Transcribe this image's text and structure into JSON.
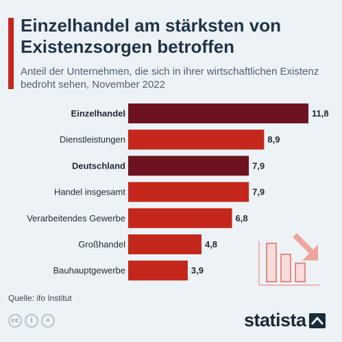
{
  "header": {
    "title": "Einzelhandel am stärksten von Existenzsorgen betroffen",
    "subtitle": "Anteil der Unternehmen, die sich in ihrer wirtschaftlichen Existenz bedroht sehen, November 2022"
  },
  "footer": {
    "source": "Quelle: ifo Institut",
    "brand": "statista",
    "license_icons": [
      "cc-icon",
      "by-icon",
      "equals-icon"
    ]
  },
  "colors": {
    "highlight": "#6e1220",
    "default": "#c4281c",
    "accent": "#c4281c",
    "background": "#edf2f7",
    "title": "#1f3446"
  },
  "decoration": {
    "icon": "declining-bar-chart-icon"
  },
  "chart_data": {
    "type": "bar",
    "orientation": "horizontal",
    "categories": [
      "Einzelhandel",
      "Dienstleistungen",
      "Deutschland",
      "Handel insgesamt",
      "Verarbeitendes Gewerbe",
      "Großhandel",
      "Bauhauptgewerbe"
    ],
    "values": [
      11.8,
      8.9,
      7.9,
      7.9,
      6.8,
      4.8,
      3.9
    ],
    "value_labels": [
      "11,8",
      "8,9",
      "7,9",
      "7,9",
      "6,8",
      "4,8",
      "3,9"
    ],
    "highlighted": [
      "Einzelhandel",
      "Deutschland"
    ],
    "xlim": [
      0,
      11.8
    ],
    "grid": false,
    "legend": "none"
  }
}
